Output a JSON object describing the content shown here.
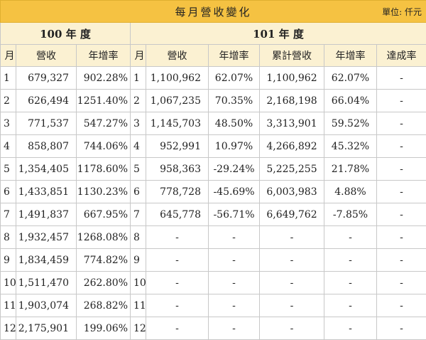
{
  "title": "每月營收變化",
  "unit": "單位: 仟元",
  "years": {
    "y100": "100 年 度",
    "y101": "101 年 度"
  },
  "headers": {
    "month": "月",
    "revenue": "營收",
    "yoy": "年增率",
    "cumulative": "累計營收",
    "achievement": "達成率"
  },
  "rows": [
    {
      "m100": "1",
      "rev100": "679,327",
      "yoy100": "902.28%",
      "m101": "1",
      "rev101": "1,100,962",
      "yoy101": "62.07%",
      "cum": "1,100,962",
      "cumyoy": "62.07%",
      "ach": "-"
    },
    {
      "m100": "2",
      "rev100": "626,494",
      "yoy100": "1251.40%",
      "m101": "2",
      "rev101": "1,067,235",
      "yoy101": "70.35%",
      "cum": "2,168,198",
      "cumyoy": "66.04%",
      "ach": "-"
    },
    {
      "m100": "3",
      "rev100": "771,537",
      "yoy100": "547.27%",
      "m101": "3",
      "rev101": "1,145,703",
      "yoy101": "48.50%",
      "cum": "3,313,901",
      "cumyoy": "59.52%",
      "ach": "-"
    },
    {
      "m100": "4",
      "rev100": "858,807",
      "yoy100": "744.06%",
      "m101": "4",
      "rev101": "952,991",
      "yoy101": "10.97%",
      "cum": "4,266,892",
      "cumyoy": "45.32%",
      "ach": "-"
    },
    {
      "m100": "5",
      "rev100": "1,354,405",
      "yoy100": "1178.60%",
      "m101": "5",
      "rev101": "958,363",
      "yoy101": "-29.24%",
      "cum": "5,225,255",
      "cumyoy": "21.78%",
      "ach": "-"
    },
    {
      "m100": "6",
      "rev100": "1,433,851",
      "yoy100": "1130.23%",
      "m101": "6",
      "rev101": "778,728",
      "yoy101": "-45.69%",
      "cum": "6,003,983",
      "cumyoy": "4.88%",
      "ach": "-"
    },
    {
      "m100": "7",
      "rev100": "1,491,837",
      "yoy100": "667.95%",
      "m101": "7",
      "rev101": "645,778",
      "yoy101": "-56.71%",
      "cum": "6,649,762",
      "cumyoy": "-7.85%",
      "ach": "-"
    },
    {
      "m100": "8",
      "rev100": "1,932,457",
      "yoy100": "1268.08%",
      "m101": "8",
      "rev101": "-",
      "yoy101": "-",
      "cum": "-",
      "cumyoy": "-",
      "ach": "-"
    },
    {
      "m100": "9",
      "rev100": "1,834,459",
      "yoy100": "774.82%",
      "m101": "9",
      "rev101": "-",
      "yoy101": "-",
      "cum": "-",
      "cumyoy": "-",
      "ach": "-"
    },
    {
      "m100": "10",
      "rev100": "1,511,470",
      "yoy100": "262.80%",
      "m101": "10",
      "rev101": "-",
      "yoy101": "-",
      "cum": "-",
      "cumyoy": "-",
      "ach": "-"
    },
    {
      "m100": "11",
      "rev100": "1,903,074",
      "yoy100": "268.82%",
      "m101": "11",
      "rev101": "-",
      "yoy101": "-",
      "cum": "-",
      "cumyoy": "-",
      "ach": "-"
    },
    {
      "m100": "12",
      "rev100": "2,175,901",
      "yoy100": "199.06%",
      "m101": "12",
      "rev101": "-",
      "yoy101": "-",
      "cum": "-",
      "cumyoy": "-",
      "ach": "-"
    }
  ]
}
